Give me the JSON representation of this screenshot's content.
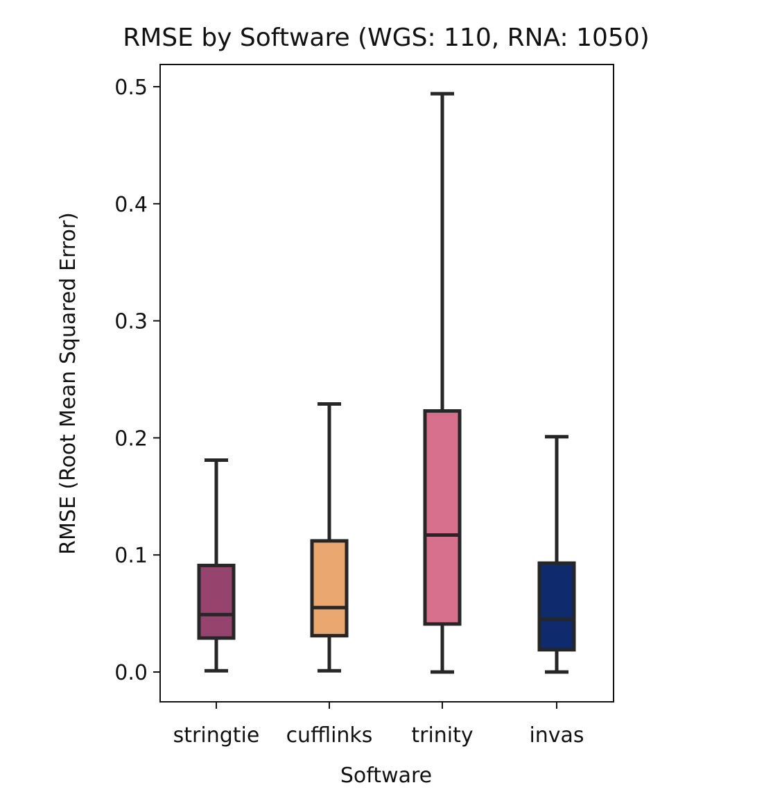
{
  "chart_data": {
    "type": "box",
    "title": "RMSE by Software (WGS: 110, RNA: 1050)",
    "xlabel": "Software",
    "ylabel": "RMSE (Root Mean Squared Error)",
    "ylim": [
      -0.025,
      0.52
    ],
    "yticks": [
      0.0,
      0.1,
      0.2,
      0.3,
      0.4,
      0.5
    ],
    "ytick_labels": [
      "0.0",
      "0.1",
      "0.2",
      "0.3",
      "0.4",
      "0.5"
    ],
    "grid": false,
    "legend": "none",
    "categories": [
      "stringtie",
      "cufflinks",
      "trinity",
      "invas"
    ],
    "boxes": [
      {
        "category": "stringtie",
        "whisker_low": 0.001,
        "q1": 0.029,
        "median": 0.049,
        "q3": 0.091,
        "whisker_high": 0.181,
        "color": "#96436e"
      },
      {
        "category": "cufflinks",
        "whisker_low": 0.001,
        "q1": 0.031,
        "median": 0.055,
        "q3": 0.112,
        "whisker_high": 0.229,
        "color": "#eba770"
      },
      {
        "category": "trinity",
        "whisker_low": 0.0,
        "q1": 0.041,
        "median": 0.117,
        "q3": 0.223,
        "whisker_high": 0.494,
        "color": "#d6708d"
      },
      {
        "category": "invas",
        "whisker_low": 0.0,
        "q1": 0.019,
        "median": 0.045,
        "q3": 0.093,
        "whisker_high": 0.201,
        "color": "#102a6e"
      }
    ]
  }
}
